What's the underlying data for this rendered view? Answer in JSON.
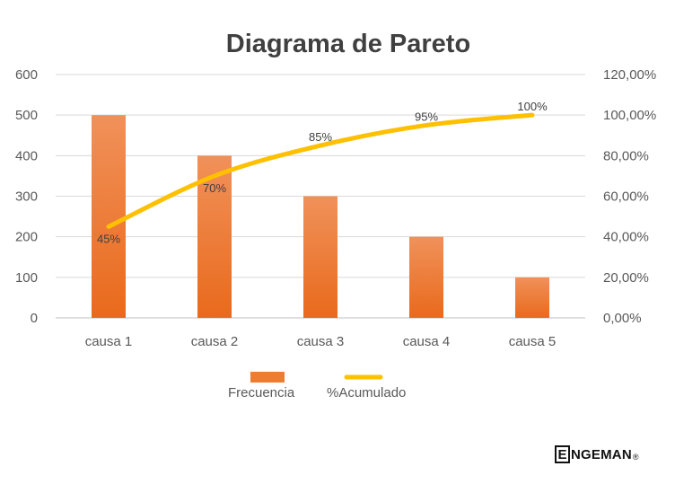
{
  "chart_data": {
    "type": "bar",
    "title": "Diagrama de Pareto",
    "categories": [
      "causa 1",
      "causa 2",
      "causa 3",
      "causa 4",
      "causa 5"
    ],
    "series": [
      {
        "name": "Frecuencia",
        "type": "bar",
        "axis": "left",
        "color": "#ED7D31",
        "values": [
          500,
          400,
          300,
          200,
          100
        ]
      },
      {
        "name": "%Acumulado",
        "type": "line",
        "axis": "right",
        "color": "#FFC000",
        "values": [
          45,
          70,
          85,
          95,
          100
        ],
        "data_labels": [
          "45%",
          "70%",
          "85%",
          "95%",
          "100%"
        ]
      }
    ],
    "ylim": [
      0,
      600
    ],
    "yticks": [
      "0",
      "100",
      "200",
      "300",
      "400",
      "500",
      "600"
    ],
    "y2lim": [
      0,
      120
    ],
    "y2ticks": [
      "0,00%",
      "20,00%",
      "40,00%",
      "60,00%",
      "80,00%",
      "100,00%",
      "120,00%"
    ],
    "grid": true,
    "legend_position": "bottom"
  },
  "logo": {
    "letter": "E",
    "text": "NGEMAN",
    "mark": "®"
  }
}
